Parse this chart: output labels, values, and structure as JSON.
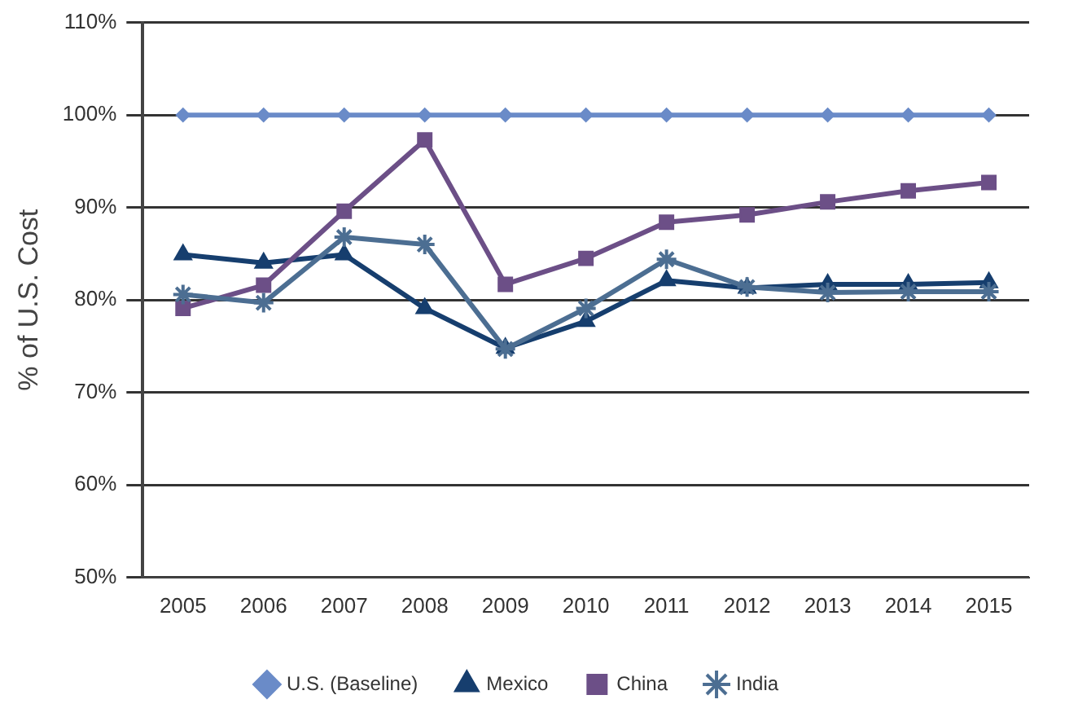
{
  "chart_data": {
    "type": "line",
    "ylabel": "% of U.S. Cost",
    "categories": [
      "2005",
      "2006",
      "2007",
      "2008",
      "2009",
      "2010",
      "2011",
      "2012",
      "2013",
      "2014",
      "2015"
    ],
    "series": [
      {
        "name": "U.S. (Baseline)",
        "color": "#6a8bc8",
        "marker": "diamond",
        "values": [
          100,
          100,
          100,
          100,
          100,
          100,
          100,
          100,
          100,
          100,
          100
        ]
      },
      {
        "name": "Mexico",
        "color": "#163e6e",
        "marker": "triangle",
        "values": [
          84.9,
          84.0,
          84.9,
          79.1,
          74.8,
          77.7,
          82.1,
          81.3,
          81.7,
          81.7,
          81.9
        ]
      },
      {
        "name": "China",
        "color": "#6c4f87",
        "marker": "square",
        "values": [
          79.1,
          81.6,
          89.6,
          97.3,
          81.7,
          84.5,
          88.4,
          89.2,
          90.6,
          91.8,
          92.7
        ]
      },
      {
        "name": "India",
        "color": "#4c6e92",
        "marker": "cross",
        "values": [
          80.6,
          79.7,
          86.8,
          86.0,
          74.7,
          79.1,
          84.4,
          81.4,
          80.8,
          80.9,
          80.9
        ]
      }
    ],
    "ylim": [
      50,
      110
    ],
    "yticks": [
      {
        "value": 50,
        "label": "50%"
      },
      {
        "value": 60,
        "label": "60%"
      },
      {
        "value": 70,
        "label": "70%"
      },
      {
        "value": 80,
        "label": "80%"
      },
      {
        "value": 90,
        "label": "90%"
      },
      {
        "value": 100,
        "label": "100%"
      },
      {
        "value": 110,
        "label": "110%"
      }
    ],
    "grid": "y",
    "legend": "bottom"
  }
}
